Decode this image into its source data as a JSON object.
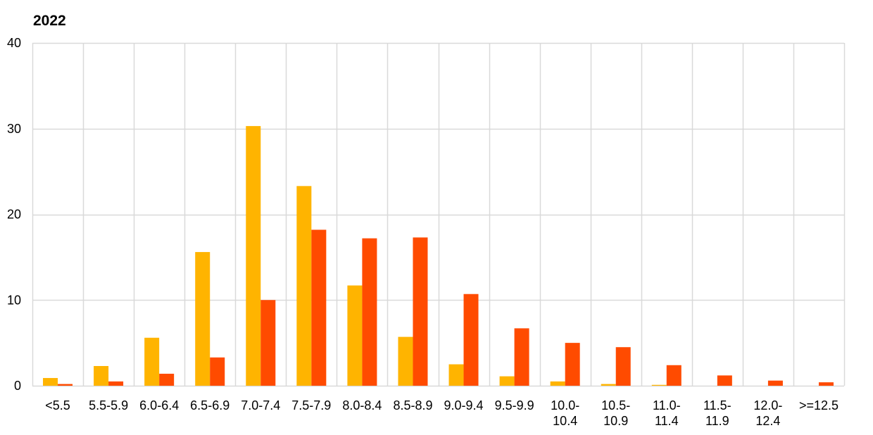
{
  "chart_data": {
    "type": "bar",
    "title": "2022",
    "categories": [
      [
        "<5.5"
      ],
      [
        "5.5-5.9"
      ],
      [
        "6.0-6.4"
      ],
      [
        "6.5-6.9"
      ],
      [
        "7.0-7.4"
      ],
      [
        "7.5-7.9"
      ],
      [
        "8.0-8.4"
      ],
      [
        "8.5-8.9"
      ],
      [
        "9.0-9.4"
      ],
      [
        "9.5-9.9"
      ],
      [
        "10.0-",
        "10.4"
      ],
      [
        "10.5-",
        "10.9"
      ],
      [
        "11.0-",
        "11.4"
      ],
      [
        "11.5-",
        "11.9"
      ],
      [
        "12.0-",
        "12.4"
      ],
      [
        ">=12.5"
      ]
    ],
    "series": [
      {
        "color": "#FFB400",
        "values": [
          0.9,
          2.3,
          5.6,
          15.6,
          30.3,
          23.3,
          11.7,
          5.7,
          2.5,
          1.1,
          0.5,
          0.2,
          0.1,
          0.0,
          0.0,
          0.0
        ]
      },
      {
        "color": "#FF4B00",
        "values": [
          0.2,
          0.5,
          1.4,
          3.3,
          10.0,
          18.2,
          17.2,
          17.3,
          10.7,
          6.7,
          5.0,
          4.5,
          2.4,
          1.2,
          0.6,
          0.4
        ]
      }
    ],
    "ylim": [
      0,
      40
    ],
    "yticks": [
      0,
      10,
      20,
      30,
      40
    ],
    "grid": true,
    "gridColor": "#D9D9D9",
    "legend": "none"
  }
}
